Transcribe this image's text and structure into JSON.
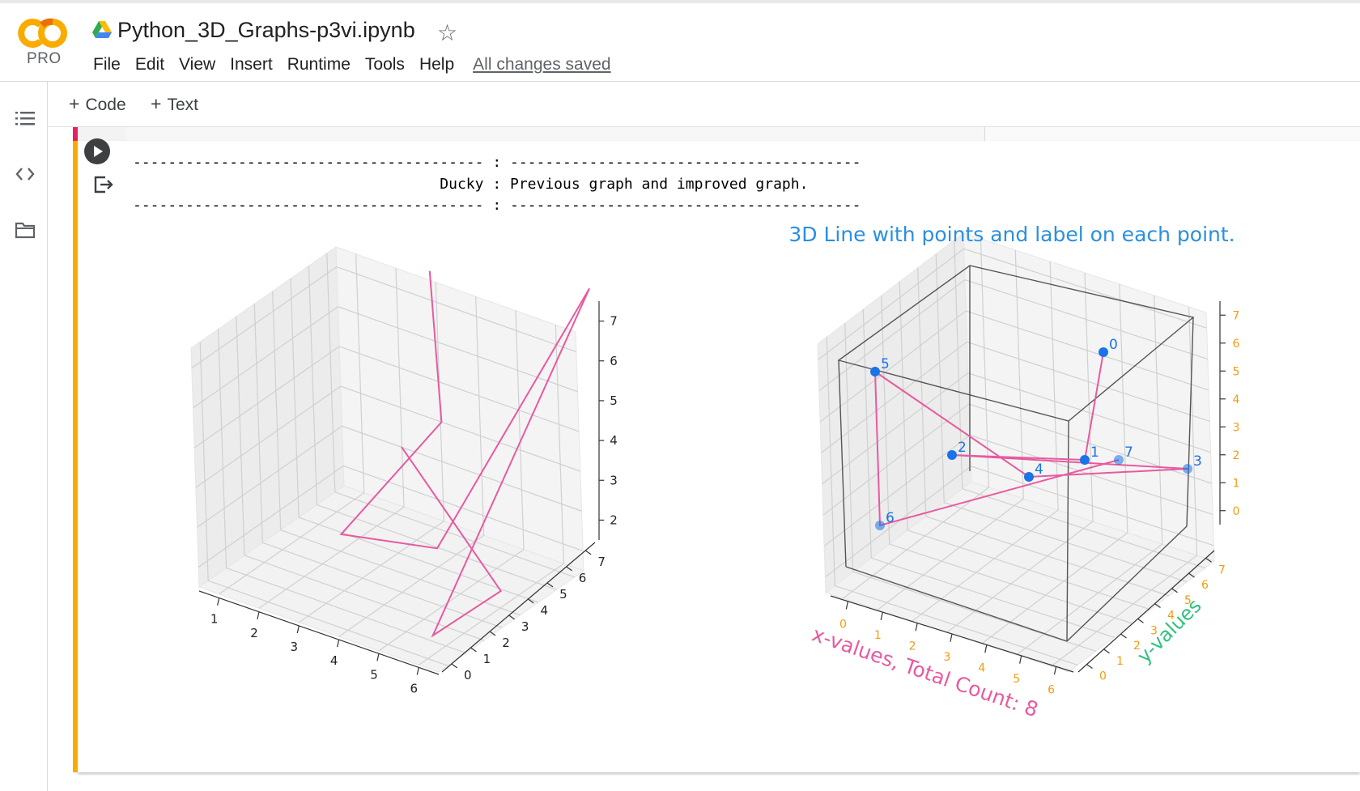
{
  "app": {
    "logo_text": "CO",
    "pro_label": "PRO",
    "notebook_title": "Python_3D_Graphs-p3vi.ipynb",
    "save_status": "All changes saved"
  },
  "menu": [
    "File",
    "Edit",
    "View",
    "Insert",
    "Runtime",
    "Tools",
    "Help"
  ],
  "toolbar": {
    "code_label": "Code",
    "text_label": "Text"
  },
  "sidebar_icons": [
    "table-of-contents-icon",
    "code-snippets-icon",
    "folder-icon"
  ],
  "output": {
    "lines": [
      "---------------------------------------- : ----------------------------------------",
      "                                   Ducky : Previous graph and improved graph.",
      "---------------------------------------- : ----------------------------------------"
    ]
  },
  "colors": {
    "line": "#e75a9f",
    "marker": "#1a73e8",
    "title": "#2a8fdf",
    "xlabel": "#e75a9f",
    "ylabel": "#2ec27e",
    "tick_right": "#f39c12",
    "accent_bar": "#f9ab00"
  },
  "chart_data": [
    {
      "type": "line",
      "dimensions": "3d",
      "title": "",
      "x": [
        1,
        2,
        3,
        4,
        5,
        6,
        7,
        1
      ],
      "y": [
        7,
        6,
        1,
        3,
        7,
        0,
        1,
        6
      ],
      "z": [
        6,
        3,
        3,
        2,
        7,
        2,
        3,
        2
      ],
      "xticks": [
        1,
        2,
        3,
        4,
        5,
        6
      ],
      "yticks": [
        0,
        1,
        2,
        3,
        4,
        5,
        6,
        7
      ],
      "zticks": [
        2,
        3,
        4,
        5,
        6,
        7
      ],
      "grid": true
    },
    {
      "type": "line",
      "dimensions": "3d",
      "title": "3D Line with points and label on each point.",
      "xlabel": "x-values, Total Count: 8",
      "ylabel": "y-values",
      "point_labels": [
        "0",
        "1",
        "2",
        "3",
        "4",
        "5",
        "6",
        "7"
      ],
      "xticks": [
        0,
        1,
        2,
        3,
        4,
        5,
        6
      ],
      "yticks": [
        0,
        1,
        2,
        3,
        4,
        5,
        6,
        7
      ],
      "zticks": [
        0,
        1,
        2,
        3,
        4,
        5,
        6,
        7
      ],
      "markers": true,
      "grid": true
    }
  ]
}
